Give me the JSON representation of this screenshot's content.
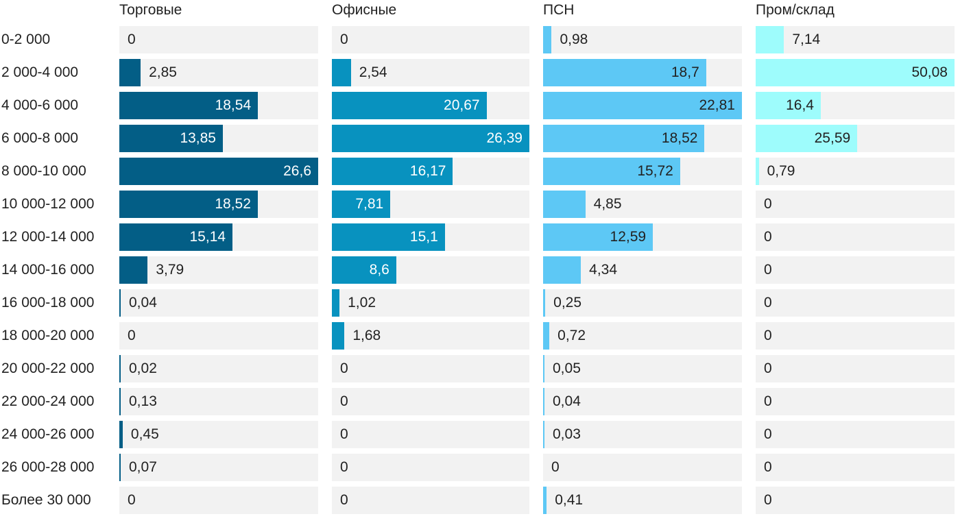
{
  "chart_data": {
    "type": "bar",
    "orientation": "horizontal",
    "layout": "small-multiples",
    "categories": [
      "0-2 000",
      "2 000-4 000",
      "4 000-6 000",
      "6 000-8 000",
      "8 000-10 000",
      "10 000-12 000",
      "12 000-14 000",
      "14 000-16 000",
      "16 000-18 000",
      "18 000-20 000",
      "20 000-22 000",
      "22 000-24 000",
      "24 000-26 000",
      "26 000-28 000",
      "Более 30 000"
    ],
    "series": [
      {
        "name": "Торговые",
        "color": "#035e86",
        "text_inside": "#ffffff",
        "values": [
          0,
          2.85,
          18.54,
          13.85,
          26.6,
          18.52,
          15.14,
          3.79,
          0.04,
          0,
          0.02,
          0.13,
          0.45,
          0.07,
          0
        ]
      },
      {
        "name": "Офисные",
        "color": "#0892bf",
        "text_inside": "#ffffff",
        "values": [
          0,
          2.54,
          20.67,
          26.39,
          16.17,
          7.81,
          15.1,
          8.6,
          1.02,
          1.68,
          0,
          0,
          0,
          0,
          0
        ]
      },
      {
        "name": "ПСН",
        "color": "#5dc8f5",
        "text_inside": "#222222",
        "values": [
          0.98,
          18.7,
          22.81,
          18.52,
          15.72,
          4.85,
          12.59,
          4.34,
          0.25,
          0.72,
          0.05,
          0.04,
          0.03,
          0,
          0.41
        ]
      },
      {
        "name": "Пром/склад",
        "color": "#9efcfc",
        "text_inside": "#222222",
        "values": [
          7.14,
          50.08,
          16.4,
          25.59,
          0.79,
          0,
          0,
          0,
          0,
          0,
          0,
          0,
          0,
          0,
          0
        ]
      }
    ]
  }
}
